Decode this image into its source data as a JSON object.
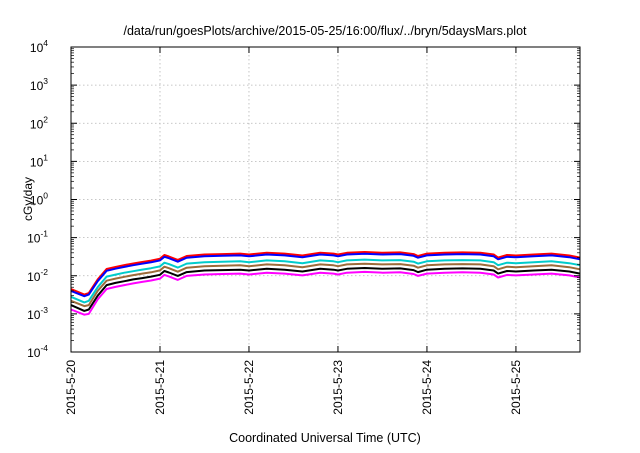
{
  "chart_data": {
    "type": "line",
    "title": "/data/run/goesPlots/archive/2015-05-25/16:00/flux/../bryn/5daysMars.plot",
    "xlabel": "Coordinated Universal Time (UTC)",
    "ylabel": "cGy/day",
    "yscale": "log",
    "ylim": [
      0.0001,
      10000
    ],
    "xlim": [
      0,
      5.72
    ],
    "grid": true,
    "x_ticks": [
      {
        "value": 0,
        "label": "2015-5-20"
      },
      {
        "value": 1,
        "label": "2015-5-21"
      },
      {
        "value": 2,
        "label": "2015-5-22"
      },
      {
        "value": 3,
        "label": "2015-5-23"
      },
      {
        "value": 4,
        "label": "2015-5-24"
      },
      {
        "value": 5,
        "label": "2015-5-25"
      }
    ],
    "y_ticks": [
      {
        "value": 0.0001,
        "base": "10",
        "exp": "-4"
      },
      {
        "value": 0.001,
        "base": "10",
        "exp": "-3"
      },
      {
        "value": 0.01,
        "base": "10",
        "exp": "-2"
      },
      {
        "value": 0.1,
        "base": "10",
        "exp": "-1"
      },
      {
        "value": 1,
        "base": "10",
        "exp": "0"
      },
      {
        "value": 10,
        "base": "10",
        "exp": "1"
      },
      {
        "value": 100,
        "base": "10",
        "exp": "2"
      },
      {
        "value": 1000,
        "base": "10",
        "exp": "3"
      },
      {
        "value": 10000,
        "base": "10",
        "exp": "4"
      }
    ],
    "x": [
      0,
      0.15,
      0.2,
      0.3,
      0.4,
      0.5,
      0.6,
      0.7,
      0.8,
      0.9,
      1.0,
      1.05,
      1.1,
      1.2,
      1.3,
      1.5,
      1.7,
      1.9,
      2.0,
      2.2,
      2.4,
      2.6,
      2.8,
      2.95,
      3.0,
      3.1,
      3.3,
      3.5,
      3.7,
      3.85,
      3.9,
      4.0,
      4.2,
      4.4,
      4.6,
      4.75,
      4.8,
      4.9,
      5.0,
      5.2,
      5.4,
      5.6,
      5.72
    ],
    "series": [
      {
        "color": "#ff0000",
        "values": [
          0.0045,
          0.0032,
          0.0035,
          0.008,
          0.015,
          0.017,
          0.019,
          0.021,
          0.023,
          0.025,
          0.028,
          0.035,
          0.032,
          0.026,
          0.033,
          0.036,
          0.037,
          0.038,
          0.036,
          0.04,
          0.038,
          0.034,
          0.04,
          0.038,
          0.036,
          0.04,
          0.042,
          0.04,
          0.041,
          0.037,
          0.033,
          0.038,
          0.04,
          0.041,
          0.04,
          0.036,
          0.03,
          0.035,
          0.034,
          0.036,
          0.038,
          0.034,
          0.03
        ]
      },
      {
        "color": "#0000ff",
        "values": [
          0.004,
          0.0029,
          0.0032,
          0.0072,
          0.0135,
          0.0153,
          0.0171,
          0.0189,
          0.0207,
          0.0225,
          0.0252,
          0.0315,
          0.0288,
          0.0234,
          0.0297,
          0.0324,
          0.0333,
          0.0342,
          0.0324,
          0.036,
          0.0342,
          0.0306,
          0.036,
          0.0342,
          0.0324,
          0.036,
          0.0378,
          0.036,
          0.0369,
          0.0333,
          0.0297,
          0.0342,
          0.036,
          0.0369,
          0.036,
          0.0324,
          0.027,
          0.0315,
          0.0306,
          0.0324,
          0.0342,
          0.0306,
          0.027
        ]
      },
      {
        "color": "#00cccc",
        "values": [
          0.0028,
          0.002,
          0.0022,
          0.005,
          0.0095,
          0.0107,
          0.012,
          0.0132,
          0.0145,
          0.0158,
          0.0176,
          0.022,
          0.0202,
          0.0164,
          0.0208,
          0.0227,
          0.0233,
          0.0239,
          0.0227,
          0.0252,
          0.0239,
          0.0214,
          0.0252,
          0.0239,
          0.0227,
          0.0252,
          0.0265,
          0.0252,
          0.0258,
          0.0233,
          0.0208,
          0.0239,
          0.0252,
          0.0258,
          0.0252,
          0.0227,
          0.0189,
          0.022,
          0.0214,
          0.0227,
          0.0239,
          0.0214,
          0.0189
        ]
      },
      {
        "color": "#9c6b3a",
        "values": [
          0.0022,
          0.0016,
          0.0017,
          0.004,
          0.0074,
          0.0084,
          0.0094,
          0.0104,
          0.0114,
          0.0123,
          0.0138,
          0.0173,
          0.0158,
          0.0128,
          0.0163,
          0.0178,
          0.0183,
          0.0188,
          0.0178,
          0.0198,
          0.0188,
          0.0168,
          0.0198,
          0.0188,
          0.0178,
          0.0198,
          0.0207,
          0.0198,
          0.0202,
          0.0183,
          0.0163,
          0.0188,
          0.0198,
          0.0202,
          0.0198,
          0.0178,
          0.0148,
          0.0173,
          0.0168,
          0.0178,
          0.0188,
          0.0168,
          0.0148
        ]
      },
      {
        "color": "#000000",
        "values": [
          0.0017,
          0.0012,
          0.0013,
          0.003,
          0.0057,
          0.0065,
          0.0072,
          0.008,
          0.0087,
          0.0095,
          0.0106,
          0.0133,
          0.0122,
          0.0099,
          0.0125,
          0.0137,
          0.0141,
          0.0144,
          0.0137,
          0.0152,
          0.0144,
          0.0129,
          0.0152,
          0.0144,
          0.0137,
          0.0152,
          0.016,
          0.0152,
          0.0156,
          0.0141,
          0.0125,
          0.0144,
          0.0152,
          0.0156,
          0.0152,
          0.0137,
          0.0114,
          0.0133,
          0.0129,
          0.0137,
          0.0144,
          0.0129,
          0.0114
        ]
      },
      {
        "color": "#ff00ff",
        "values": [
          0.0013,
          0.00095,
          0.001,
          0.0024,
          0.0045,
          0.0051,
          0.0057,
          0.0063,
          0.0069,
          0.0075,
          0.0084,
          0.0105,
          0.0096,
          0.0078,
          0.0099,
          0.0108,
          0.0111,
          0.0114,
          0.0108,
          0.012,
          0.0114,
          0.0102,
          0.012,
          0.0114,
          0.0108,
          0.012,
          0.0126,
          0.012,
          0.0123,
          0.0111,
          0.0099,
          0.0114,
          0.012,
          0.0123,
          0.012,
          0.0108,
          0.009,
          0.0105,
          0.0102,
          0.0108,
          0.0114,
          0.0102,
          0.009
        ]
      }
    ]
  }
}
